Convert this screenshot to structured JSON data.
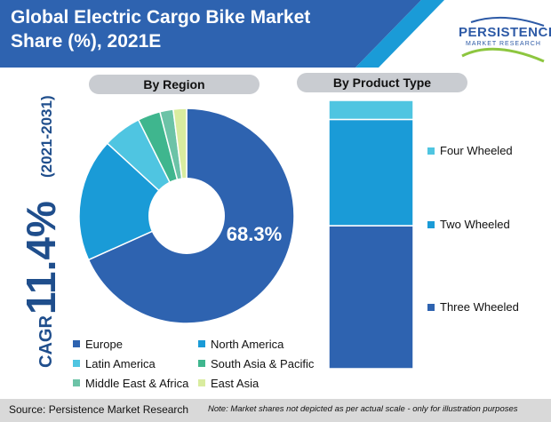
{
  "header": {
    "title_line1": "Global Electric Cargo Bike Market",
    "title_line2": "Share (%), 2021E",
    "logo_main": "PERSISTENCE",
    "logo_sub": "MARKET RESEARCH"
  },
  "cagr": {
    "prefix": "CAGR",
    "value": "11.4%",
    "period": "(2021-2031)"
  },
  "chart_data": [
    {
      "type": "pie",
      "title": "By Region",
      "labels": [
        "Europe",
        "North America",
        "Latin America",
        "South Asia & Pacific",
        "Middle East & Africa",
        "East Asia"
      ],
      "values": [
        68.3,
        18.5,
        5.8,
        3.4,
        2.0,
        2.0
      ],
      "colors": [
        "#2e63b0",
        "#1a9bd7",
        "#4fc5e1",
        "#3fb68e",
        "#6cc3a7",
        "#d9ec9f"
      ],
      "data_label": "68.3%",
      "legend_position": "bottom"
    },
    {
      "type": "bar",
      "title": "By Product Type",
      "stacked": true,
      "categories": [
        "Three Wheeled",
        "Two Wheeled",
        "Four Wheeled"
      ],
      "values": [
        53.3,
        39.6,
        7.1
      ],
      "colors": [
        "#2e63b0",
        "#1a9bd7",
        "#4fc5e1"
      ],
      "legend_position": "right"
    }
  ],
  "legend_colors": {
    "Europe": "#2e63b0",
    "North America": "#1a9bd7",
    "Latin America": "#4fc5e1",
    "South Asia & Pacific": "#3fb68e",
    "Middle East & Africa": "#6cc3a7",
    "East Asia": "#d9ec9f"
  },
  "footer": {
    "source": "Source: Persistence Market Research",
    "note": "Note: Market shares not depicted as per actual scale - only for illustration purposes"
  }
}
